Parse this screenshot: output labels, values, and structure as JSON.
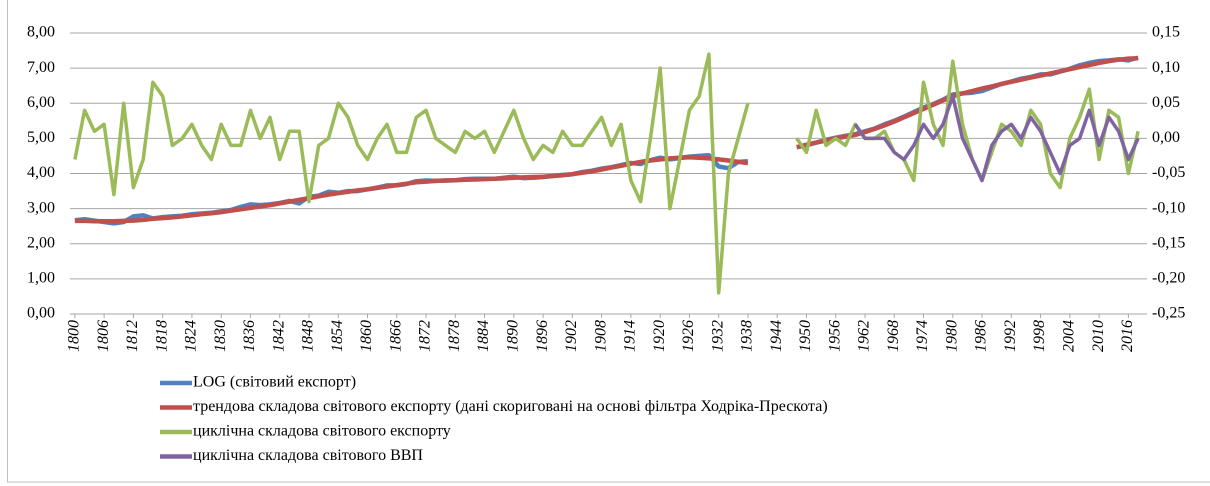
{
  "chart_data": {
    "type": "line",
    "x": [
      1800,
      1802,
      1804,
      1806,
      1808,
      1810,
      1812,
      1814,
      1816,
      1818,
      1820,
      1822,
      1824,
      1826,
      1828,
      1830,
      1832,
      1834,
      1836,
      1838,
      1840,
      1842,
      1844,
      1846,
      1848,
      1850,
      1852,
      1854,
      1856,
      1858,
      1860,
      1862,
      1864,
      1866,
      1868,
      1870,
      1872,
      1874,
      1876,
      1878,
      1880,
      1882,
      1884,
      1886,
      1888,
      1890,
      1892,
      1894,
      1896,
      1898,
      1900,
      1902,
      1904,
      1906,
      1908,
      1910,
      1912,
      1914,
      1916,
      1918,
      1920,
      1922,
      1924,
      1926,
      1928,
      1930,
      1932,
      1934,
      1936,
      1938,
      1940,
      1942,
      1944,
      1946,
      1948,
      1950,
      1952,
      1954,
      1956,
      1958,
      1960,
      1962,
      1964,
      1966,
      1968,
      1970,
      1972,
      1974,
      1976,
      1978,
      1980,
      1982,
      1984,
      1986,
      1988,
      1990,
      1992,
      1994,
      1996,
      1998,
      2000,
      2002,
      2004,
      2006,
      2008,
      2010,
      2012,
      2014,
      2016,
      2018
    ],
    "xlim": [
      1799,
      2019
    ],
    "xticks": [
      1800,
      1806,
      1812,
      1818,
      1824,
      1830,
      1836,
      1842,
      1848,
      1854,
      1860,
      1866,
      1872,
      1878,
      1884,
      1890,
      1896,
      1902,
      1908,
      1914,
      1920,
      1926,
      1932,
      1938,
      1944,
      1950,
      1956,
      1962,
      1968,
      1974,
      1980,
      1986,
      1992,
      1998,
      2004,
      2010,
      2016
    ],
    "ylim": [
      0,
      8
    ],
    "yticks": [
      {
        "value": 0,
        "label": "0,00"
      },
      {
        "value": 1,
        "label": "1,00"
      },
      {
        "value": 2,
        "label": "2,00"
      },
      {
        "value": 3,
        "label": "3,00"
      },
      {
        "value": 4,
        "label": "4,00"
      },
      {
        "value": 5,
        "label": "5,00"
      },
      {
        "value": 6,
        "label": "6,00"
      },
      {
        "value": 7,
        "label": "7,00"
      },
      {
        "value": 8,
        "label": "8,00"
      }
    ],
    "y2lim": [
      -0.25,
      0.15
    ],
    "y2ticks": [
      {
        "value": -0.25,
        "label": "-0,25"
      },
      {
        "value": -0.2,
        "label": "-0,20"
      },
      {
        "value": -0.15,
        "label": "-0,15"
      },
      {
        "value": -0.1,
        "label": "-0,10"
      },
      {
        "value": -0.05,
        "label": "-0,05"
      },
      {
        "value": 0,
        "label": "0,00"
      },
      {
        "value": 0.05,
        "label": "0,05"
      },
      {
        "value": 0.1,
        "label": "0,10"
      },
      {
        "value": 0.15,
        "label": "0,15"
      }
    ],
    "grid": true,
    "series": [
      {
        "name": "LOG (світовий експорт)",
        "color": "#4f81bd",
        "values": [
          2.67,
          2.7,
          2.66,
          2.62,
          2.58,
          2.62,
          2.78,
          2.81,
          2.72,
          2.76,
          2.78,
          2.8,
          2.84,
          2.86,
          2.88,
          2.92,
          2.96,
          3.05,
          3.12,
          3.1,
          3.12,
          3.16,
          3.22,
          3.15,
          3.34,
          3.37,
          3.48,
          3.45,
          3.5,
          3.5,
          3.55,
          3.6,
          3.66,
          3.66,
          3.7,
          3.78,
          3.8,
          3.79,
          3.8,
          3.81,
          3.84,
          3.85,
          3.85,
          3.85,
          3.88,
          3.91,
          3.87,
          3.88,
          3.9,
          3.93,
          3.96,
          3.98,
          4.04,
          4.08,
          4.14,
          4.18,
          4.24,
          4.3,
          4.27,
          4.38,
          4.45,
          4.4,
          4.44,
          4.48,
          4.5,
          4.52,
          4.2,
          4.15,
          4.33,
          4.35,
          null,
          null,
          null,
          null,
          4.75,
          4.8,
          4.88,
          4.96,
          5.02,
          5.07,
          5.12,
          5.2,
          5.28,
          5.4,
          5.5,
          5.62,
          5.75,
          5.88,
          5.98,
          6.1,
          6.25,
          6.28,
          6.3,
          6.35,
          6.45,
          6.55,
          6.62,
          6.7,
          6.75,
          6.82,
          6.82,
          6.9,
          6.98,
          7.08,
          7.15,
          7.2,
          7.22,
          7.25,
          7.22,
          7.3
        ]
      },
      {
        "name": "трендова складова світового експорту (дані скориговані на основі фільтра Ходріка-Прескота)",
        "color": "#c0504d",
        "values": [
          2.65,
          2.65,
          2.64,
          2.64,
          2.64,
          2.65,
          2.66,
          2.68,
          2.71,
          2.73,
          2.75,
          2.78,
          2.81,
          2.84,
          2.87,
          2.9,
          2.94,
          2.98,
          3.02,
          3.06,
          3.1,
          3.15,
          3.2,
          3.25,
          3.3,
          3.35,
          3.4,
          3.44,
          3.48,
          3.52,
          3.55,
          3.59,
          3.63,
          3.67,
          3.71,
          3.75,
          3.77,
          3.79,
          3.8,
          3.81,
          3.82,
          3.83,
          3.84,
          3.85,
          3.86,
          3.88,
          3.89,
          3.9,
          3.91,
          3.93,
          3.95,
          3.98,
          4.02,
          4.06,
          4.11,
          4.17,
          4.22,
          4.28,
          4.33,
          4.37,
          4.4,
          4.43,
          4.45,
          4.46,
          4.45,
          4.43,
          4.4,
          4.37,
          4.33,
          4.3,
          null,
          null,
          null,
          null,
          4.75,
          4.82,
          4.88,
          4.94,
          5.0,
          5.05,
          5.1,
          5.18,
          5.27,
          5.37,
          5.48,
          5.6,
          5.72,
          5.84,
          5.96,
          6.08,
          6.2,
          6.28,
          6.35,
          6.42,
          6.48,
          6.55,
          6.61,
          6.67,
          6.73,
          6.79,
          6.85,
          6.91,
          6.97,
          7.03,
          7.09,
          7.15,
          7.2,
          7.24,
          7.27,
          7.28
        ]
      },
      {
        "name": "циклічна складова світового експорту",
        "color": "#9bbb59",
        "axis": "y2",
        "values": [
          -0.03,
          0.04,
          0.01,
          0.02,
          -0.08,
          0.05,
          -0.07,
          -0.03,
          0.08,
          0.06,
          -0.01,
          0.0,
          0.02,
          -0.01,
          -0.03,
          0.02,
          -0.01,
          -0.01,
          0.04,
          0.0,
          0.03,
          -0.03,
          0.01,
          0.01,
          -0.09,
          -0.01,
          0.0,
          0.05,
          0.03,
          -0.01,
          -0.03,
          0.0,
          0.02,
          -0.02,
          -0.02,
          0.03,
          0.04,
          0.0,
          -0.01,
          -0.02,
          0.01,
          0.0,
          0.01,
          -0.02,
          0.01,
          0.04,
          0.0,
          -0.03,
          -0.01,
          -0.02,
          0.01,
          -0.01,
          -0.01,
          0.01,
          0.03,
          -0.01,
          0.02,
          -0.06,
          -0.09,
          0.0,
          0.1,
          -0.1,
          -0.03,
          0.04,
          0.06,
          0.12,
          -0.22,
          -0.05,
          0.0,
          0.05,
          null,
          null,
          null,
          null,
          0.0,
          -0.02,
          0.04,
          -0.01,
          0.0,
          -0.01,
          0.02,
          0.0,
          0.0,
          0.01,
          -0.02,
          -0.03,
          -0.06,
          0.08,
          0.02,
          -0.01,
          0.11,
          0.02,
          -0.03,
          -0.06,
          -0.02,
          0.02,
          0.01,
          -0.01,
          0.04,
          0.02,
          -0.05,
          -0.07,
          0.0,
          0.03,
          0.07,
          -0.03,
          0.04,
          0.03,
          -0.05,
          0.01
        ]
      },
      {
        "name": "циклічна складова світового ВВП",
        "color": "#8064a2",
        "axis": "y2",
        "values": [
          null,
          null,
          null,
          null,
          null,
          null,
          null,
          null,
          null,
          null,
          null,
          null,
          null,
          null,
          null,
          null,
          null,
          null,
          null,
          null,
          null,
          null,
          null,
          null,
          null,
          null,
          null,
          null,
          null,
          null,
          null,
          null,
          null,
          null,
          null,
          null,
          null,
          null,
          null,
          null,
          null,
          null,
          null,
          null,
          null,
          null,
          null,
          null,
          null,
          null,
          null,
          null,
          null,
          null,
          null,
          null,
          null,
          null,
          null,
          null,
          null,
          null,
          null,
          null,
          null,
          null,
          null,
          null,
          null,
          null,
          null,
          null,
          null,
          null,
          null,
          null,
          null,
          null,
          null,
          null,
          0.02,
          0.0,
          0.0,
          0.0,
          -0.02,
          -0.03,
          -0.01,
          0.02,
          0.0,
          0.02,
          0.06,
          0.0,
          -0.03,
          -0.06,
          -0.01,
          0.01,
          0.02,
          0.0,
          0.03,
          0.01,
          -0.02,
          -0.05,
          -0.01,
          0.0,
          0.04,
          -0.01,
          0.03,
          0.01,
          -0.03,
          0.0
        ]
      }
    ]
  }
}
